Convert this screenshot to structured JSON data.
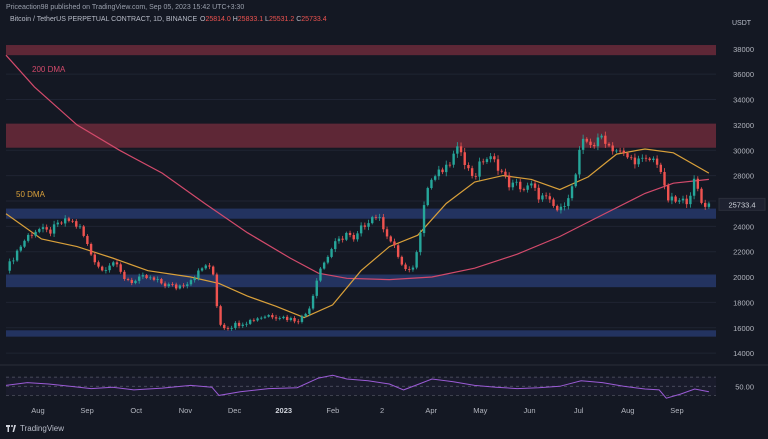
{
  "header": {
    "publisher": "Priceaction98 published on TradingView.com, Sep 05, 2023 15:42 UTC+3:30",
    "symbol": "Bitcoin / TetherUS PERPETUAL CONTRACT, 1D, BINANCE",
    "ohlc": {
      "o_label": "O",
      "o": "25814.0",
      "h_label": "H",
      "h": "25833.1",
      "l_label": "L",
      "l": "25531.2",
      "c_label": "C",
      "c": "25733.4"
    }
  },
  "axis_unit": "USDT",
  "footer": {
    "brand": "TradingView"
  },
  "colors": {
    "background": "#141823",
    "resistance_zone": "#6b2a39",
    "support_zone": "#26386b",
    "candle_up": "#26a69a",
    "candle_down": "#ef5350",
    "dma200": "#d24a6b",
    "dma50": "#d9a03a",
    "rsi": "#9b5bd6"
  },
  "chart_data": {
    "type": "candlestick",
    "timeframe": "1D",
    "x_labels": [
      "Aug",
      "Sep",
      "Oct",
      "Nov",
      "Dec",
      "2023",
      "Feb",
      "2",
      "Apr",
      "May",
      "Jun",
      "Jul",
      "Aug",
      "Sep"
    ],
    "y_ticks": [
      14000,
      16000,
      18000,
      20000,
      22000,
      24000,
      26000,
      28000,
      30000,
      32000,
      34000,
      36000,
      38000
    ],
    "ylim": [
      13300,
      39800
    ],
    "last_price": "25733.4",
    "price_path": [
      [
        0,
        20500
      ],
      [
        0.015,
        22000
      ],
      [
        0.03,
        23200
      ],
      [
        0.045,
        23800
      ],
      [
        0.06,
        23500
      ],
      [
        0.075,
        24200
      ],
      [
        0.09,
        24500
      ],
      [
        0.105,
        23800
      ],
      [
        0.12,
        21800
      ],
      [
        0.135,
        20500
      ],
      [
        0.15,
        21300
      ],
      [
        0.165,
        20000
      ],
      [
        0.18,
        19600
      ],
      [
        0.195,
        20000
      ],
      [
        0.21,
        19700
      ],
      [
        0.225,
        19400
      ],
      [
        0.24,
        19200
      ],
      [
        0.255,
        19600
      ],
      [
        0.27,
        20300
      ],
      [
        0.282,
        21000
      ],
      [
        0.292,
        20200
      ],
      [
        0.3,
        16400
      ],
      [
        0.31,
        16000
      ],
      [
        0.325,
        16300
      ],
      [
        0.34,
        16500
      ],
      [
        0.355,
        16800
      ],
      [
        0.37,
        17000
      ],
      [
        0.385,
        16900
      ],
      [
        0.4,
        16700
      ],
      [
        0.41,
        16600
      ],
      [
        0.42,
        16900
      ],
      [
        0.43,
        18000
      ],
      [
        0.44,
        20500
      ],
      [
        0.45,
        21300
      ],
      [
        0.46,
        22400
      ],
      [
        0.47,
        22900
      ],
      [
        0.48,
        23500
      ],
      [
        0.49,
        22800
      ],
      [
        0.5,
        23800
      ],
      [
        0.51,
        24500
      ],
      [
        0.52,
        24900
      ],
      [
        0.53,
        24200
      ],
      [
        0.54,
        23000
      ],
      [
        0.55,
        22000
      ],
      [
        0.56,
        20600
      ],
      [
        0.57,
        20300
      ],
      [
        0.58,
        22200
      ],
      [
        0.59,
        26500
      ],
      [
        0.6,
        27800
      ],
      [
        0.61,
        28200
      ],
      [
        0.62,
        28500
      ],
      [
        0.63,
        29500
      ],
      [
        0.64,
        30300
      ],
      [
        0.65,
        28500
      ],
      [
        0.66,
        27900
      ],
      [
        0.67,
        29200
      ],
      [
        0.68,
        29400
      ],
      [
        0.69,
        29000
      ],
      [
        0.7,
        28100
      ],
      [
        0.71,
        27200
      ],
      [
        0.72,
        27300
      ],
      [
        0.73,
        26900
      ],
      [
        0.74,
        27200
      ],
      [
        0.75,
        26400
      ],
      [
        0.76,
        26200
      ],
      [
        0.77,
        25600
      ],
      [
        0.78,
        25100
      ],
      [
        0.79,
        26300
      ],
      [
        0.8,
        27300
      ],
      [
        0.81,
        30500
      ],
      [
        0.82,
        30700
      ],
      [
        0.83,
        30400
      ],
      [
        0.84,
        31200
      ],
      [
        0.85,
        30300
      ],
      [
        0.86,
        30000
      ],
      [
        0.87,
        29600
      ],
      [
        0.88,
        29300
      ],
      [
        0.89,
        29200
      ],
      [
        0.9,
        29100
      ],
      [
        0.91,
        29300
      ],
      [
        0.92,
        29000
      ],
      [
        0.93,
        26200
      ],
      [
        0.94,
        26000
      ],
      [
        0.95,
        25900
      ],
      [
        0.96,
        26100
      ],
      [
        0.97,
        27600
      ],
      [
        0.98,
        25800
      ],
      [
        0.99,
        25733
      ]
    ],
    "dma200_path": [
      [
        0,
        37500
      ],
      [
        0.04,
        35000
      ],
      [
        0.1,
        32000
      ],
      [
        0.16,
        30000
      ],
      [
        0.22,
        28200
      ],
      [
        0.28,
        25800
      ],
      [
        0.34,
        23500
      ],
      [
        0.4,
        21500
      ],
      [
        0.44,
        20300
      ],
      [
        0.48,
        19900
      ],
      [
        0.54,
        19800
      ],
      [
        0.6,
        20000
      ],
      [
        0.66,
        20700
      ],
      [
        0.72,
        21800
      ],
      [
        0.78,
        23200
      ],
      [
        0.84,
        24900
      ],
      [
        0.9,
        26600
      ],
      [
        0.94,
        27400
      ],
      [
        0.99,
        27700
      ]
    ],
    "dma50_path": [
      [
        0,
        25000
      ],
      [
        0.05,
        23000
      ],
      [
        0.1,
        22400
      ],
      [
        0.15,
        21500
      ],
      [
        0.2,
        20500
      ],
      [
        0.26,
        20000
      ],
      [
        0.3,
        19500
      ],
      [
        0.34,
        18500
      ],
      [
        0.38,
        17700
      ],
      [
        0.42,
        16800
      ],
      [
        0.46,
        17800
      ],
      [
        0.5,
        20500
      ],
      [
        0.54,
        22400
      ],
      [
        0.58,
        23300
      ],
      [
        0.62,
        25800
      ],
      [
        0.66,
        27500
      ],
      [
        0.7,
        28000
      ],
      [
        0.74,
        27700
      ],
      [
        0.78,
        26900
      ],
      [
        0.82,
        27900
      ],
      [
        0.86,
        29700
      ],
      [
        0.9,
        30100
      ],
      [
        0.94,
        29800
      ],
      [
        0.99,
        28200
      ]
    ],
    "annotations": [
      {
        "label": "200 DMA"
      },
      {
        "label": "50 DMA"
      }
    ],
    "zones": [
      {
        "type": "resistance",
        "from": 37500,
        "to": 38300
      },
      {
        "type": "resistance",
        "from": 30200,
        "to": 32100
      },
      {
        "type": "support",
        "from": 24600,
        "to": 25400
      },
      {
        "type": "support",
        "from": 19200,
        "to": 20200
      },
      {
        "type": "support",
        "from": 15300,
        "to": 15800
      }
    ],
    "rsi": {
      "tick_label": "50.00",
      "ylim": [
        20,
        90
      ],
      "levels": [
        30,
        50,
        70
      ],
      "path": [
        [
          0,
          52
        ],
        [
          0.03,
          58
        ],
        [
          0.06,
          55
        ],
        [
          0.09,
          50
        ],
        [
          0.12,
          45
        ],
        [
          0.15,
          48
        ],
        [
          0.18,
          42
        ],
        [
          0.22,
          46
        ],
        [
          0.26,
          52
        ],
        [
          0.29,
          48
        ],
        [
          0.3,
          30
        ],
        [
          0.33,
          38
        ],
        [
          0.37,
          45
        ],
        [
          0.41,
          47
        ],
        [
          0.44,
          68
        ],
        [
          0.46,
          74
        ],
        [
          0.48,
          66
        ],
        [
          0.51,
          62
        ],
        [
          0.54,
          55
        ],
        [
          0.56,
          42
        ],
        [
          0.58,
          54
        ],
        [
          0.6,
          66
        ],
        [
          0.63,
          60
        ],
        [
          0.66,
          52
        ],
        [
          0.69,
          48
        ],
        [
          0.72,
          45
        ],
        [
          0.75,
          47
        ],
        [
          0.78,
          50
        ],
        [
          0.81,
          62
        ],
        [
          0.84,
          58
        ],
        [
          0.87,
          50
        ],
        [
          0.9,
          44
        ],
        [
          0.92,
          42
        ],
        [
          0.93,
          24
        ],
        [
          0.95,
          33
        ],
        [
          0.97,
          44
        ],
        [
          0.99,
          38
        ]
      ]
    }
  }
}
